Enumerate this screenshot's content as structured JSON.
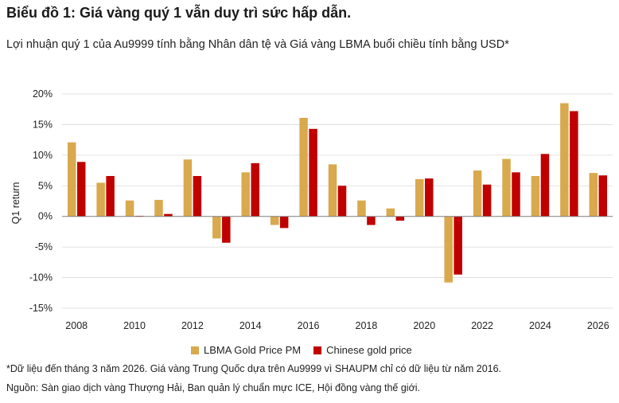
{
  "header": {
    "title": "Biểu đồ 1: Giá vàng quý 1 vẫn duy trì sức hấp dẫn.",
    "subtitle": "Lợi nhuận quý 1 của Au9999 tính bằng Nhân dân tệ và Giá vàng LBMA buổi chiều tính bằng USD*"
  },
  "footer": {
    "note": "*Dữ liệu đến tháng 3 năm 2026. Giá vàng Trung Quốc dựa trên Au9999 vì SHAUPM chỉ có dữ liệu từ năm 2016.",
    "source": "Nguồn: Sàn giao dịch vàng Thượng Hải, Ban quản lý chuẩn mực ICE, Hội đồng vàng thế giới."
  },
  "colors": {
    "lbma": "#D9A94E",
    "chinese": "#C00000",
    "axis": "#7F7F7F",
    "grid": "#D9D9D9"
  },
  "chart_data": {
    "type": "bar",
    "title": "",
    "xlabel": "",
    "ylabel": "Q1 return",
    "ylim": [
      -15,
      20
    ],
    "yticks": [
      20,
      15,
      10,
      5,
      0,
      -5,
      -10,
      -15
    ],
    "ytick_labels": [
      "20%",
      "15%",
      "10%",
      "5%",
      "0%",
      "-5%",
      "-10%",
      "-15%"
    ],
    "categories": [
      "2008",
      "2009",
      "2010",
      "2011",
      "2012",
      "2013",
      "2014",
      "2015",
      "2016",
      "2017",
      "2018",
      "2019",
      "2020",
      "2021",
      "2022",
      "2023",
      "2024",
      "2025",
      "2026"
    ],
    "xtick_labels": [
      "2008",
      "",
      "2010",
      "",
      "2012",
      "",
      "2014",
      "",
      "2016",
      "",
      "2018",
      "",
      "2020",
      "",
      "2022",
      "",
      "2024",
      "",
      "2026"
    ],
    "series": [
      {
        "name": "LBMA Gold Price PM",
        "color": "#D9A94E",
        "values": [
          12.1,
          5.5,
          2.6,
          2.7,
          9.3,
          -3.6,
          7.2,
          -1.4,
          16.1,
          8.5,
          2.6,
          1.3,
          6.1,
          -10.8,
          7.5,
          9.4,
          6.6,
          18.5,
          7.1
        ]
      },
      {
        "name": "Chinese gold price",
        "color": "#C00000",
        "values": [
          8.9,
          6.6,
          0.1,
          0.4,
          6.6,
          -4.3,
          8.7,
          -1.9,
          14.3,
          5.0,
          -1.4,
          -0.7,
          6.2,
          -9.5,
          5.2,
          7.2,
          10.2,
          17.2,
          6.7
        ]
      }
    ],
    "grid": true,
    "legend": "bottom-center"
  }
}
